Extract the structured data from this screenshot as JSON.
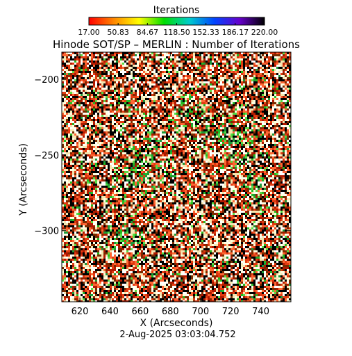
{
  "colorbar": {
    "label": "Iterations",
    "tick_labels": [
      "17.00",
      "50.83",
      "84.67",
      "118.50",
      "152.33",
      "186.17",
      "220.00"
    ],
    "range": [
      17,
      220
    ],
    "colors": [
      "#ff0000",
      "#ff8800",
      "#ffff00",
      "#00dd00",
      "#00cccc",
      "#0044ff",
      "#6600cc",
      "#000000"
    ]
  },
  "chart_data": {
    "type": "heatmap",
    "title": "Hinode SOT/SP – MERLIN : Number of Iterations",
    "xlabel": "X (Arcseconds)",
    "ylabel": "Y (Arcseconds)",
    "xlim": [
      608,
      760
    ],
    "ylim": [
      -347,
      -182
    ],
    "xticks": [
      620,
      640,
      660,
      680,
      700,
      720,
      740
    ],
    "yticks": [
      -200,
      -250,
      -300
    ],
    "value_range": [
      17,
      220
    ],
    "dominant_colors": [
      "#000000",
      "#cc2200",
      "#ffffcc",
      "#33cc33",
      "#884400"
    ],
    "timestamp": "2-Aug-2025 03:03:04.752"
  }
}
